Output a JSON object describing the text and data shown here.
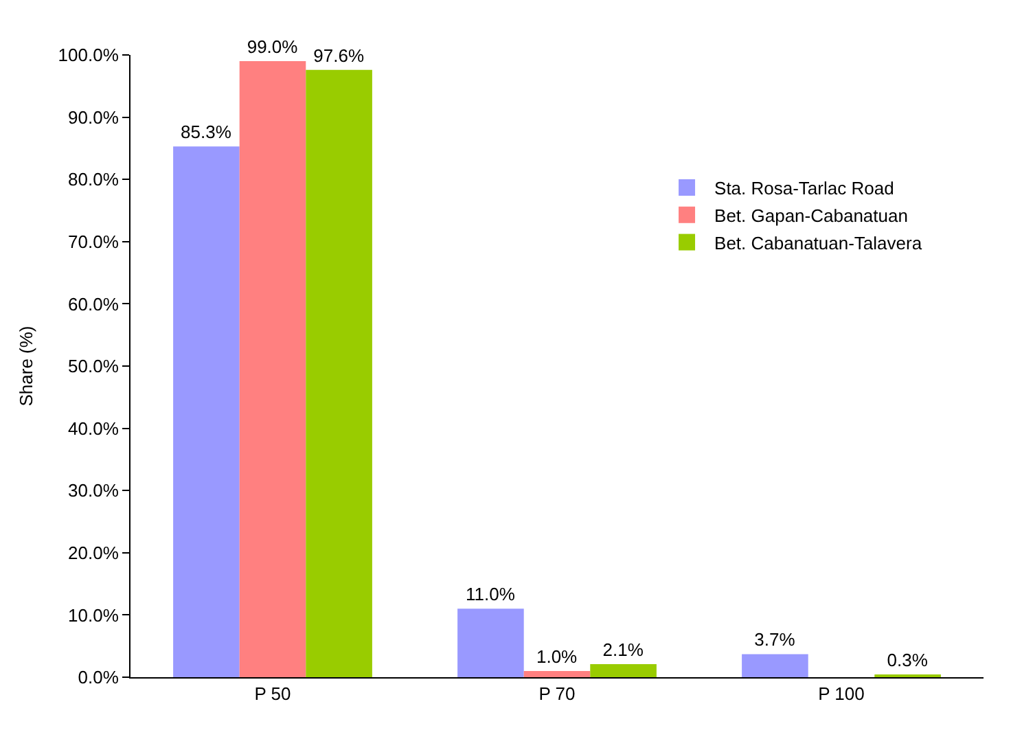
{
  "chart_data": {
    "type": "bar",
    "ylabel": "Share (%)",
    "categories": [
      "P 50",
      "P 70",
      "P 100"
    ],
    "series": [
      {
        "name": "Sta. Rosa-Tarlac Road",
        "color": "#9999ff",
        "values": [
          85.3,
          11.0,
          3.7
        ],
        "value_labels": [
          "85.3%",
          "11.0%",
          "3.7%"
        ]
      },
      {
        "name": "Bet. Gapan-Cabanatuan",
        "color": "#ff8080",
        "values": [
          99.0,
          1.0,
          null
        ],
        "value_labels": [
          "99.0%",
          "1.0%",
          null
        ]
      },
      {
        "name": "Bet. Cabanatuan-Talavera",
        "color": "#99cc00",
        "values": [
          97.6,
          2.1,
          0.3
        ],
        "value_labels": [
          "97.6%",
          "2.1%",
          "0.3%"
        ]
      }
    ],
    "ylim": [
      0,
      100
    ],
    "yticks": [
      {
        "value": 0,
        "label": "0.0%"
      },
      {
        "value": 10,
        "label": "10.0%"
      },
      {
        "value": 20,
        "label": "20.0%"
      },
      {
        "value": 30,
        "label": "30.0%"
      },
      {
        "value": 40,
        "label": "40.0%"
      },
      {
        "value": 50,
        "label": "50.0%"
      },
      {
        "value": 60,
        "label": "60.0%"
      },
      {
        "value": 70,
        "label": "70.0%"
      },
      {
        "value": 80,
        "label": "80.0%"
      },
      {
        "value": 90,
        "label": "90.0%"
      },
      {
        "value": 100,
        "label": "100.0%"
      }
    ],
    "legend": "right"
  }
}
